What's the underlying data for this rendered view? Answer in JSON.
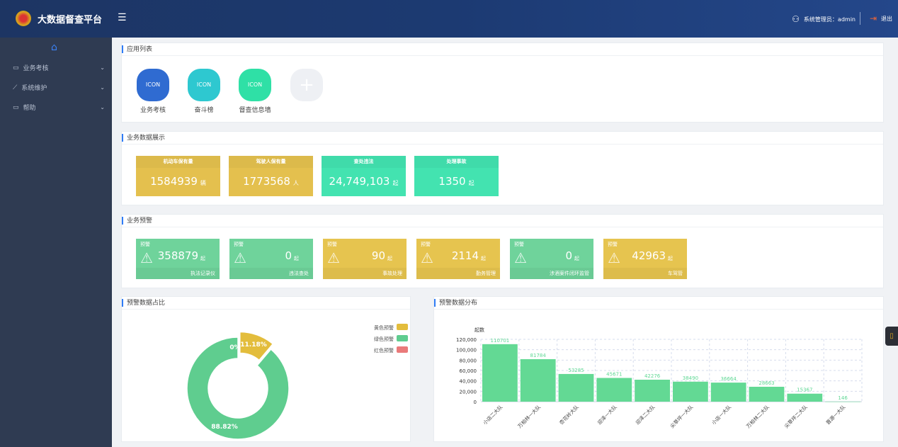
{
  "header": {
    "title": "大数据督查平台",
    "user_label": "系统管理员：admin",
    "logout_label": "退出"
  },
  "sidebar": {
    "items": [
      {
        "label": "业务考核"
      },
      {
        "label": "系统维护"
      },
      {
        "label": "帮助"
      }
    ]
  },
  "apps": {
    "title": "应用列表",
    "items": [
      {
        "icon": "ICON",
        "label": "业务考核",
        "color": "#2f6bd1"
      },
      {
        "icon": "ICON",
        "label": "奋斗榜",
        "color": "#2ec8d0"
      },
      {
        "icon": "ICON",
        "label": "督查信息墙",
        "color": "#2fe0a6"
      }
    ],
    "add_icon": "+"
  },
  "business": {
    "title": "业务数据展示",
    "cards": [
      {
        "label": "机动车保有量",
        "value": "1584939",
        "unit": "辆",
        "color": "#e4c04e"
      },
      {
        "label": "驾驶人保有量",
        "value": "1773568",
        "unit": "人",
        "color": "#e4c04e"
      },
      {
        "label": "查处违法",
        "value": "24,749,103",
        "unit": "起",
        "color": "#43e3b0"
      },
      {
        "label": "处理事故",
        "value": "1350",
        "unit": "起",
        "color": "#43e3b0"
      }
    ]
  },
  "warnings": {
    "title": "业务预警",
    "cards": [
      {
        "tag": "预警",
        "value": "358879",
        "unit": "起",
        "label": "执法记录仪",
        "color": "#6fd39b"
      },
      {
        "tag": "预警",
        "value": "0",
        "unit": "起",
        "label": "违法查处",
        "color": "#6fd39b"
      },
      {
        "tag": "预警",
        "value": "90",
        "unit": "起",
        "label": "事故处理",
        "color": "#e6c44f"
      },
      {
        "tag": "预警",
        "value": "2114",
        "unit": "起",
        "label": "勤务管理",
        "color": "#e6c44f"
      },
      {
        "tag": "预警",
        "value": "0",
        "unit": "起",
        "label": "涉酒案件闭环监管",
        "color": "#6fd39b"
      },
      {
        "tag": "预警",
        "value": "42963",
        "unit": "起",
        "label": "车驾管",
        "color": "#e6c44f"
      }
    ]
  },
  "chart_data": [
    {
      "type": "pie",
      "title": "预警数据占比",
      "series": [
        {
          "name": "黄色预警",
          "value": 11.18,
          "label": "11.18%",
          "color": "#e3bd3c"
        },
        {
          "name": "绿色预警",
          "value": 88.82,
          "label": "88.82%",
          "color": "#5fcd8f"
        },
        {
          "name": "红色预警",
          "value": 0,
          "label": "0%",
          "color": "#ea7a7a"
        }
      ],
      "legend": "top-right",
      "donut": true
    },
    {
      "type": "bar",
      "title": "预警数据分布",
      "ylabel": "起数",
      "ylim": [
        0,
        120000
      ],
      "yticks": [
        "0",
        "20,000",
        "40,000",
        "60,000",
        "80,000",
        "100,000",
        "120,000"
      ],
      "grid": true,
      "categories": [
        "小店二大队",
        "万柏林一大队",
        "杏花岭大队",
        "迎泽一大队",
        "迎泽二大队",
        "尖草坪一大队",
        "小店一大队",
        "万柏林二大队",
        "尖草坪二大队",
        "晋源一大队"
      ],
      "values": [
        110701,
        81784,
        53285,
        45671,
        42276,
        38490,
        36664,
        28663,
        15367,
        146
      ],
      "color": "#63d994"
    }
  ]
}
